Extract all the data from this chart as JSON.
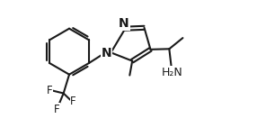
{
  "background_color": "#ffffff",
  "bond_color": "#1a1a1a",
  "text_color": "#1a1a1a",
  "line_width": 1.5,
  "font_size": 8.5,
  "figsize": [
    2.96,
    1.52
  ],
  "dpi": 100,
  "xlim": [
    0,
    9.5
  ],
  "ylim": [
    -0.2,
    5.0
  ]
}
